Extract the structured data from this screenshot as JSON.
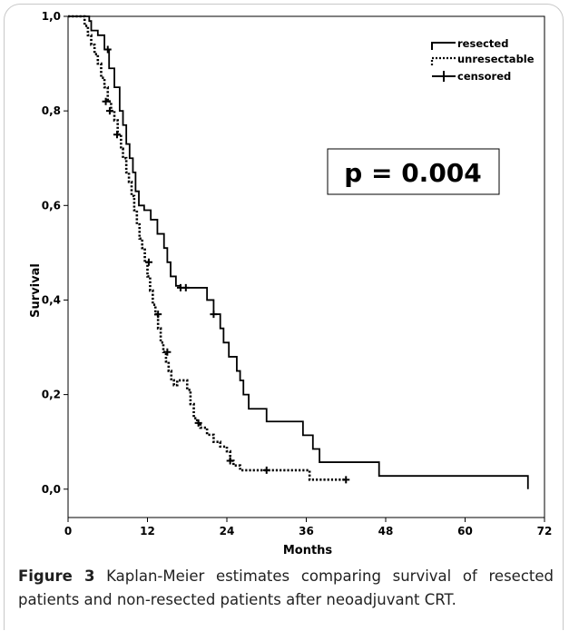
{
  "chart_data": {
    "type": "line",
    "xlabel": "Months",
    "ylabel": "Survival",
    "xlim": [
      0,
      72
    ],
    "ylim": [
      -0.06,
      1.0
    ],
    "xticks": [
      0,
      12,
      24,
      36,
      48,
      60,
      72
    ],
    "xtick_labels": [
      "0",
      "12",
      "24",
      "36",
      "48",
      "60",
      "72"
    ],
    "yticks": [
      0.0,
      0.2,
      0.4,
      0.6,
      0.8,
      1.0
    ],
    "ytick_labels": [
      "0,0",
      "0,2",
      "0,4",
      "0,6",
      "0,8",
      "1,0"
    ],
    "annotation": "p = 0.004",
    "legend": {
      "position": "top-right",
      "entries": [
        {
          "label": "resected",
          "style": "solid"
        },
        {
          "label": "unresectable",
          "style": "dotted"
        },
        {
          "label": "censored",
          "style": "plus"
        }
      ]
    },
    "series": [
      {
        "name": "resected",
        "style": "solid",
        "x": [
          0,
          3.2,
          3.5,
          4.5,
          5.5,
          6.2,
          7.0,
          7.8,
          8.3,
          8.8,
          9.3,
          9.8,
          10.2,
          10.7,
          11.5,
          12.5,
          13.5,
          14.5,
          15.0,
          15.5,
          16.3,
          17.0,
          21.0,
          22.0,
          23.0,
          23.5,
          24.3,
          25.5,
          26.0,
          26.5,
          27.3,
          29.0,
          30.0,
          35.5,
          37.0,
          38.0,
          47.0,
          69.5
        ],
        "y": [
          1.0,
          0.99,
          0.97,
          0.96,
          0.93,
          0.89,
          0.85,
          0.8,
          0.77,
          0.73,
          0.7,
          0.67,
          0.63,
          0.6,
          0.59,
          0.57,
          0.54,
          0.51,
          0.48,
          0.45,
          0.43,
          0.426,
          0.4,
          0.37,
          0.34,
          0.31,
          0.28,
          0.25,
          0.23,
          0.2,
          0.17,
          0.17,
          0.143,
          0.114,
          0.085,
          0.057,
          0.028,
          0.0
        ],
        "censored_points": [
          [
            6.0,
            0.93
          ],
          [
            17.0,
            0.426
          ],
          [
            17.8,
            0.426
          ],
          [
            22.0,
            0.37
          ]
        ]
      },
      {
        "name": "unresectable",
        "style": "dotted",
        "x": [
          0,
          2.5,
          3.0,
          3.5,
          4.0,
          4.5,
          5.0,
          5.5,
          6.0,
          6.5,
          7.0,
          7.5,
          8.0,
          8.3,
          8.8,
          9.2,
          9.6,
          10.0,
          10.4,
          10.8,
          11.2,
          11.6,
          12.0,
          12.4,
          12.8,
          13.2,
          13.6,
          14.0,
          14.4,
          14.8,
          15.2,
          15.6,
          16.0,
          16.5,
          18.0,
          18.5,
          19.0,
          19.5,
          20.0,
          21.0,
          22.0,
          23.0,
          24.0,
          24.5,
          25.0,
          26.0,
          36.0,
          36.5,
          42.0
        ],
        "y": [
          1.0,
          0.98,
          0.96,
          0.94,
          0.92,
          0.9,
          0.87,
          0.85,
          0.82,
          0.8,
          0.78,
          0.75,
          0.72,
          0.7,
          0.67,
          0.65,
          0.62,
          0.59,
          0.56,
          0.53,
          0.51,
          0.48,
          0.45,
          0.42,
          0.39,
          0.37,
          0.34,
          0.31,
          0.29,
          0.27,
          0.25,
          0.23,
          0.22,
          0.23,
          0.21,
          0.18,
          0.15,
          0.14,
          0.13,
          0.115,
          0.1,
          0.09,
          0.08,
          0.06,
          0.05,
          0.04,
          0.04,
          0.02,
          0.02
        ],
        "censored_points": [
          [
            5.7,
            0.82
          ],
          [
            6.3,
            0.8
          ],
          [
            7.4,
            0.75
          ],
          [
            12.2,
            0.48
          ],
          [
            13.6,
            0.37
          ],
          [
            15.0,
            0.29
          ],
          [
            19.7,
            0.14
          ],
          [
            24.5,
            0.06
          ],
          [
            30.0,
            0.04
          ],
          [
            42.0,
            0.02
          ]
        ]
      }
    ]
  },
  "caption": {
    "label": "Figure 3",
    "text": " Kaplan-Meier estimates comparing survival of resected patients and non-resected patients after neoadjuvant CRT."
  }
}
